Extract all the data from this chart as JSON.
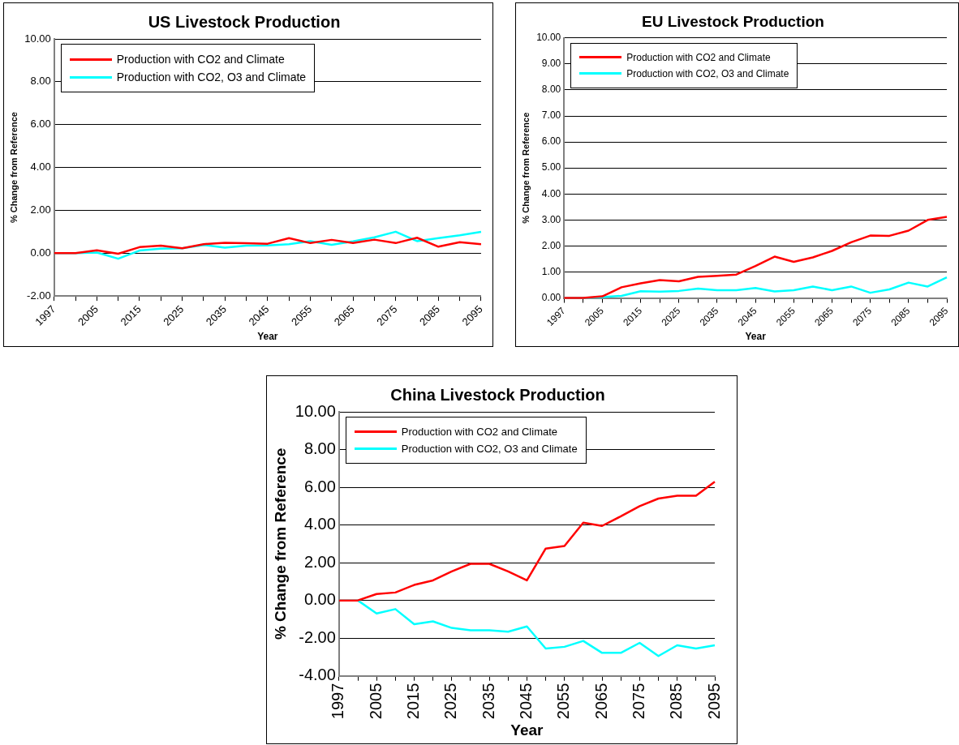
{
  "chart_data": [
    {
      "type": "line",
      "title": "US Livestock Production",
      "xlabel": "Year",
      "ylabel": "% Change from Reference",
      "categories": [
        "1997",
        null,
        "2005",
        null,
        "2015",
        null,
        "2025",
        null,
        "2035",
        null,
        "2045",
        null,
        "2055",
        null,
        "2065",
        null,
        "2075",
        null,
        "2085",
        null,
        "2095"
      ],
      "series": [
        {
          "name": "Production with CO2 and Climate",
          "color": "#ff0000",
          "values": [
            0,
            0,
            0.13,
            -0.03,
            0.28,
            0.35,
            0.23,
            0.42,
            0.48,
            0.46,
            0.44,
            0.7,
            0.47,
            0.62,
            0.47,
            0.63,
            0.47,
            0.72,
            0.3,
            0.51,
            0.42
          ]
        },
        {
          "name": "Production with CO2, O3 and Climate",
          "color": "#00ffff",
          "values": [
            0,
            0,
            0.03,
            -0.26,
            0.12,
            0.21,
            0.23,
            0.38,
            0.26,
            0.35,
            0.36,
            0.42,
            0.56,
            0.39,
            0.55,
            0.74,
            1.0,
            0.56,
            0.7,
            0.83,
            0.99
          ]
        }
      ],
      "ylim": [
        -2,
        10
      ],
      "yticks": [
        {
          "value": -2,
          "label": "-2.00"
        },
        {
          "value": 0,
          "label": "0.00"
        },
        {
          "value": 2,
          "label": "2.00"
        },
        {
          "value": 4,
          "label": "4.00"
        },
        {
          "value": 6,
          "label": "6.00"
        },
        {
          "value": 8,
          "label": "8.00"
        },
        {
          "value": 10,
          "label": "10.00"
        }
      ],
      "grid": "y",
      "legend": "top left",
      "marker": "none"
    },
    {
      "type": "line",
      "title": "EU Livestock Production",
      "xlabel": "Year",
      "ylabel": "% Change from Reference",
      "categories": [
        "1997",
        null,
        "2005",
        null,
        "2015",
        null,
        "2025",
        null,
        "2035",
        null,
        "2045",
        null,
        "2055",
        null,
        "2065",
        null,
        "2075",
        null,
        "2085",
        null,
        "2095"
      ],
      "series": [
        {
          "name": "Production with CO2 and Climate",
          "color": "#ff0000",
          "values": [
            0,
            0,
            0.06,
            0.41,
            0.56,
            0.69,
            0.64,
            0.81,
            0.85,
            0.9,
            1.23,
            1.59,
            1.39,
            1.56,
            1.81,
            2.14,
            2.4,
            2.39,
            2.59,
            3.0,
            3.12
          ]
        },
        {
          "name": "Production with CO2, O3 and Climate",
          "color": "#00ffff",
          "values": [
            0,
            0,
            0.03,
            0.08,
            0.26,
            0.24,
            0.27,
            0.36,
            0.3,
            0.3,
            0.38,
            0.25,
            0.3,
            0.44,
            0.3,
            0.44,
            0.2,
            0.33,
            0.59,
            0.44,
            0.79
          ]
        }
      ],
      "ylim": [
        0,
        10
      ],
      "yticks": [
        {
          "value": 0,
          "label": "0.00"
        },
        {
          "value": 1,
          "label": "1.00"
        },
        {
          "value": 2,
          "label": "2.00"
        },
        {
          "value": 3,
          "label": "3.00"
        },
        {
          "value": 4,
          "label": "4.00"
        },
        {
          "value": 5,
          "label": "5.00"
        },
        {
          "value": 6,
          "label": "6.00"
        },
        {
          "value": 7,
          "label": "7.00"
        },
        {
          "value": 8,
          "label": "8.00"
        },
        {
          "value": 9,
          "label": "9.00"
        },
        {
          "value": 10,
          "label": "10.00"
        }
      ],
      "grid": "y",
      "legend": "top left",
      "marker": "none"
    },
    {
      "type": "line",
      "title": "China Livestock Production",
      "xlabel": "Year",
      "ylabel": "% Change from Reference",
      "categories": [
        "1997",
        null,
        "2005",
        null,
        "2015",
        null,
        "2025",
        null,
        "2035",
        null,
        "2045",
        null,
        "2055",
        null,
        "2065",
        null,
        "2075",
        null,
        "2085",
        null,
        "2095"
      ],
      "series": [
        {
          "name": "Production with CO2 and Climate",
          "color": "#ff0000",
          "values": [
            0,
            0,
            0.34,
            0.42,
            0.82,
            1.06,
            1.54,
            1.94,
            1.94,
            1.54,
            1.06,
            2.75,
            2.89,
            4.12,
            3.95,
            4.46,
            5.0,
            5.4,
            5.55,
            5.55,
            6.29
          ]
        },
        {
          "name": "Production with CO2, O3 and Climate",
          "color": "#00ffff",
          "values": [
            0,
            0,
            -0.69,
            -0.46,
            -1.26,
            -1.11,
            -1.46,
            -1.58,
            -1.58,
            -1.66,
            -1.38,
            -2.55,
            -2.46,
            -2.15,
            -2.78,
            -2.78,
            -2.25,
            -2.95,
            -2.38,
            -2.55,
            -2.38
          ]
        }
      ],
      "ylim": [
        -4,
        10
      ],
      "yticks": [
        {
          "value": -4,
          "label": "-4.00"
        },
        {
          "value": -2,
          "label": "-2.00"
        },
        {
          "value": 0,
          "label": "0.00"
        },
        {
          "value": 2,
          "label": "2.00"
        },
        {
          "value": 4,
          "label": "4.00"
        },
        {
          "value": 6,
          "label": "6.00"
        },
        {
          "value": 8,
          "label": "8.00"
        },
        {
          "value": 10,
          "label": "10.00"
        }
      ],
      "grid": "y",
      "legend": "top left",
      "marker": "none"
    }
  ]
}
